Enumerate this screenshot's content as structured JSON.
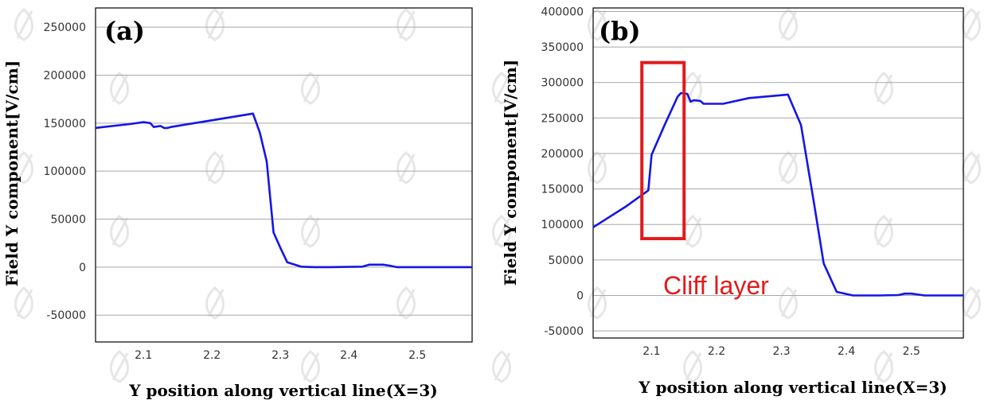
{
  "chart_data": [
    {
      "type": "line",
      "panel_label": "(a)",
      "xlabel": "Y position along vertical line(X=3)",
      "ylabel": "Field Y component[V/cm]",
      "xlim": [
        2.03,
        2.58
      ],
      "ylim": [
        -78000,
        270000
      ],
      "xticks": [
        2.1,
        2.2,
        2.3,
        2.4,
        2.5
      ],
      "yticks": [
        -50000,
        0,
        50000,
        100000,
        150000,
        200000,
        250000
      ],
      "xtick_labels": [
        "2.1",
        "2.2",
        "2.3",
        "2.4",
        "2.5"
      ],
      "ytick_labels": [
        "-50000",
        "0",
        "50000",
        "100000",
        "150000",
        "200000",
        "250000"
      ],
      "grid": true,
      "color": "#1515e6",
      "series": [
        {
          "x": [
            2.03,
            2.08,
            2.1,
            2.11,
            2.115,
            2.125,
            2.13,
            2.135,
            2.14,
            2.26,
            2.27,
            2.28,
            2.29,
            2.3,
            2.31,
            2.33,
            2.35,
            2.37,
            2.42,
            2.43,
            2.45,
            2.46,
            2.47,
            2.58
          ],
          "y": [
            145000,
            149000,
            151000,
            150000,
            146000,
            147000,
            145000,
            145000,
            146000,
            160000,
            140000,
            110000,
            36000,
            20000,
            5000,
            500,
            0,
            0,
            500,
            2500,
            2500,
            1500,
            0,
            0
          ]
        }
      ]
    },
    {
      "type": "line",
      "panel_label": "(b)",
      "xlabel": "Y position along vertical line(X=3)",
      "ylabel": "Field Y component[V/cm]",
      "xlim": [
        2.01,
        2.58
      ],
      "ylim": [
        -60000,
        405000
      ],
      "xticks": [
        2.1,
        2.2,
        2.3,
        2.4,
        2.5
      ],
      "yticks": [
        -50000,
        0,
        50000,
        100000,
        150000,
        200000,
        250000,
        300000,
        350000,
        400000
      ],
      "xtick_labels": [
        "2.1",
        "2.2",
        "2.3",
        "2.4",
        "2.5"
      ],
      "ytick_labels": [
        "-50000",
        "0",
        "50000",
        "100000",
        "150000",
        "200000",
        "250000",
        "300000",
        "350000",
        "400000"
      ],
      "grid": true,
      "color": "#1515e6",
      "annotation": {
        "text": "Cliff layer",
        "color": "#e31a1c",
        "box_x": [
          2.085,
          2.15
        ],
        "box_y": [
          80000,
          328000
        ]
      },
      "series": [
        {
          "x": [
            2.01,
            2.06,
            2.095,
            2.1,
            2.12,
            2.14,
            2.145,
            2.155,
            2.16,
            2.165,
            2.175,
            2.18,
            2.21,
            2.25,
            2.31,
            2.33,
            2.35,
            2.365,
            2.385,
            2.41,
            2.45,
            2.48,
            2.49,
            2.5,
            2.52,
            2.58
          ],
          "y": [
            96000,
            125000,
            148000,
            198000,
            240000,
            280000,
            285000,
            284000,
            273000,
            275000,
            274000,
            270000,
            270000,
            278000,
            283000,
            240000,
            130000,
            45000,
            5000,
            0,
            0,
            500,
            2500,
            2500,
            0,
            0
          ]
        }
      ]
    }
  ]
}
